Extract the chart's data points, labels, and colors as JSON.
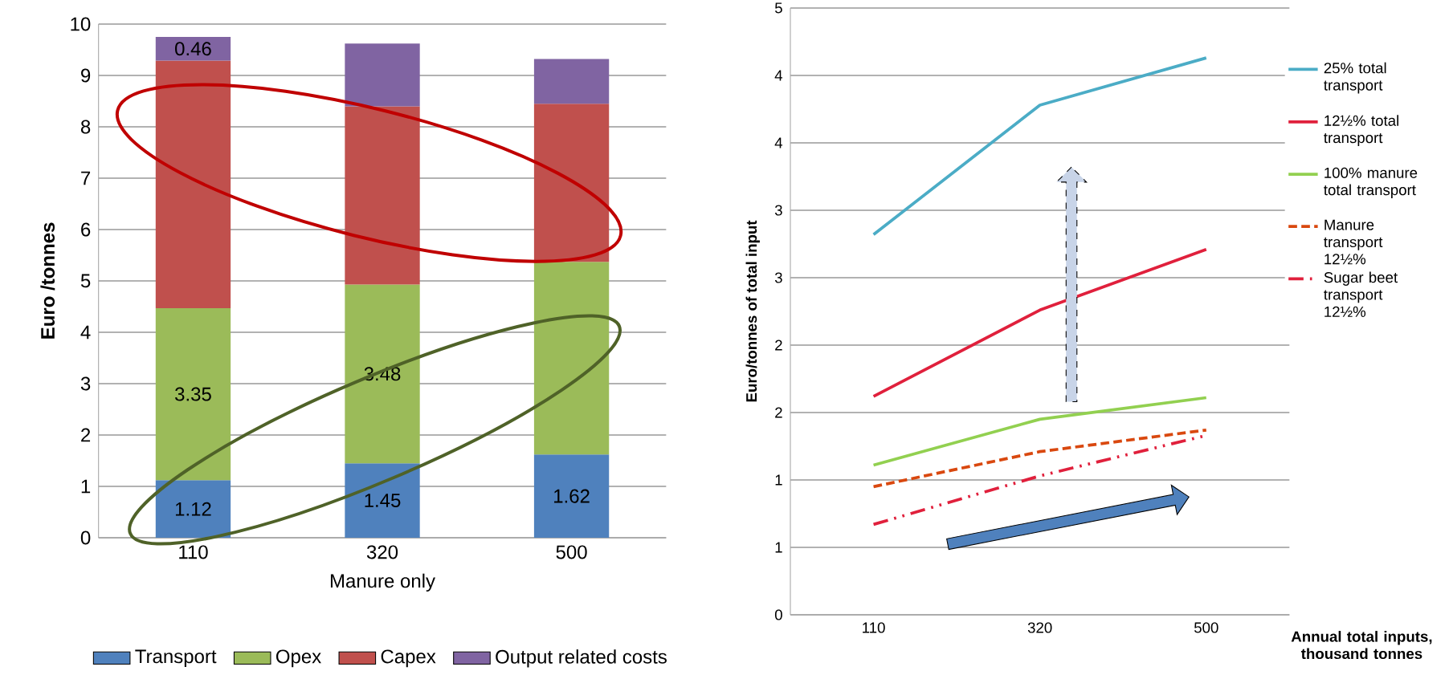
{
  "chart_data": [
    {
      "type": "bar",
      "stacked": true,
      "categories": [
        "110",
        "320",
        "500"
      ],
      "xlabel": "Manure only",
      "ylabel": "Euro /tonnes",
      "ylim": [
        0,
        10
      ],
      "yticks": [
        0,
        1,
        2,
        3,
        4,
        5,
        6,
        7,
        8,
        9,
        10
      ],
      "grid": "y",
      "legend": "bottom",
      "series": [
        {
          "name": "Transport",
          "color": "#4f81bd",
          "values": [
            1.12,
            1.45,
            1.62
          ],
          "value_labels": [
            "1.12",
            "1.45",
            "1.62"
          ]
        },
        {
          "name": "Opex",
          "color": "#9bbb59",
          "values": [
            3.35,
            3.48,
            3.75
          ],
          "value_labels": [
            "3.35",
            "3.48",
            null
          ]
        },
        {
          "name": "Capex",
          "color": "#c0504d",
          "values": [
            4.82,
            3.47,
            3.08
          ]
        },
        {
          "name": "Output related costs",
          "color": "#8064a2",
          "values": [
            0.46,
            1.22,
            0.87
          ],
          "value_labels": [
            "0.46",
            null,
            null
          ]
        }
      ]
    },
    {
      "type": "line",
      "categories": [
        "110",
        "320",
        "500"
      ],
      "xlabel": "Annual total inputs, thousand tonnes",
      "ylabel": "Euro/tonnes of total input",
      "ylim": [
        0,
        4.5
      ],
      "yticks": [
        0,
        {
          "value": 0.5,
          "label": "1"
        },
        1,
        {
          "value": 1.5,
          "label": "2"
        },
        2,
        {
          "value": 2.5,
          "label": "3"
        },
        3,
        {
          "value": 3.5,
          "label": "4"
        },
        4,
        {
          "value": 4.5,
          "label": "5"
        }
      ],
      "grid": "y",
      "legend": "right",
      "series": [
        {
          "name": "25% total transport",
          "color": "#4bacc6",
          "line_style": "solid",
          "values": [
            2.82,
            3.78,
            4.13
          ]
        },
        {
          "name": "12½% total transport",
          "color": "#e0203c",
          "line_style": "solid",
          "values": [
            1.62,
            2.26,
            2.71
          ]
        },
        {
          "name": "100% manure total transport",
          "color": "#92d050",
          "line_style": "solid",
          "values": [
            1.11,
            1.45,
            1.61
          ]
        },
        {
          "name": "Manure transport 12½%",
          "color": "#d9480f",
          "line_style": "dashed",
          "values": [
            0.95,
            1.21,
            1.37
          ]
        },
        {
          "name": "Sugar beet transport 12½%",
          "color": "#e0203c",
          "line_style": "dashdot",
          "values": [
            0.67,
            1.03,
            1.33
          ]
        }
      ]
    }
  ]
}
